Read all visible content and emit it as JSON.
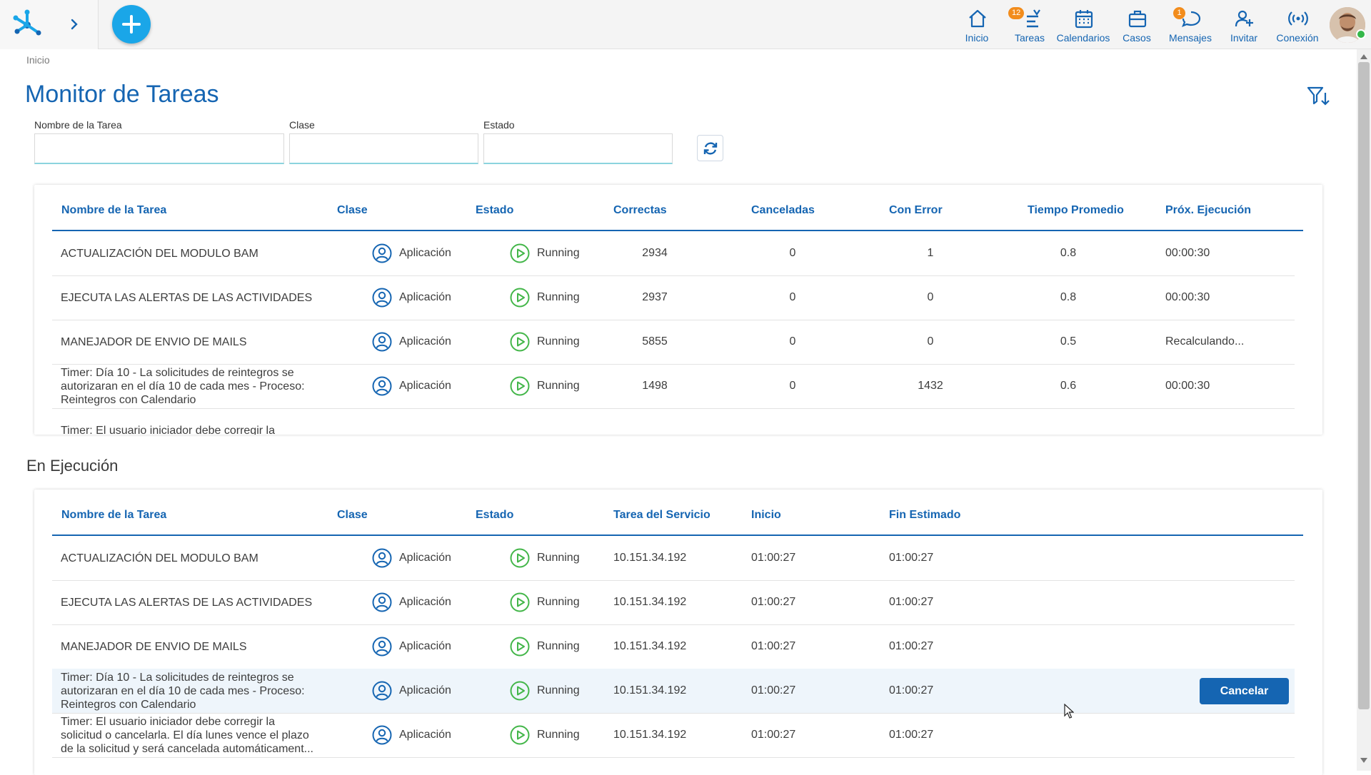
{
  "nav": {
    "items": [
      {
        "label": "Inicio",
        "icon": "home-icon"
      },
      {
        "label": "Tareas",
        "icon": "tasks-icon",
        "badge": "12"
      },
      {
        "label": "Calendarios",
        "icon": "calendar-icon"
      },
      {
        "label": "Casos",
        "icon": "briefcase-icon"
      },
      {
        "label": "Mensajes",
        "icon": "chat-icon",
        "badge": "1"
      },
      {
        "label": "Invitar",
        "icon": "add-user-icon"
      },
      {
        "label": "Conexión",
        "icon": "signal-icon"
      }
    ]
  },
  "breadcrumb": "Inicio",
  "page_title": "Monitor de Tareas",
  "filters": {
    "task_name_label": "Nombre de la Tarea",
    "task_name_value": "",
    "class_label": "Clase",
    "class_value": "",
    "state_label": "Estado",
    "state_value": ""
  },
  "monitor_table": {
    "headers": [
      "Nombre de la Tarea",
      "Clase",
      "Estado",
      "Correctas",
      "Canceladas",
      "Con Error",
      "Tiempo Promedio",
      "Próx. Ejecución"
    ],
    "rows": [
      {
        "name": [
          "ACTUALIZACIÓN DEL MODULO BAM"
        ],
        "clase": "Aplicación",
        "estado": "Running",
        "correctas": "2934",
        "canceladas": "0",
        "con_error": "1",
        "tiempo": "0.8",
        "prox": "00:00:30"
      },
      {
        "name": [
          "EJECUTA LAS ALERTAS DE LAS ACTIVIDADES"
        ],
        "clase": "Aplicación",
        "estado": "Running",
        "correctas": "2937",
        "canceladas": "0",
        "con_error": "0",
        "tiempo": "0.8",
        "prox": "00:00:30"
      },
      {
        "name": [
          "MANEJADOR DE ENVIO DE MAILS"
        ],
        "clase": "Aplicación",
        "estado": "Running",
        "correctas": "5855",
        "canceladas": "0",
        "con_error": "0",
        "tiempo": "0.5",
        "prox": "Recalculando..."
      },
      {
        "name": [
          "Timer: Día 10 - La solicitudes de reintegros se",
          "autorizaran en el día 10 de cada mes - Proceso:",
          "Reintegros con Calendario"
        ],
        "clase": "Aplicación",
        "estado": "Running",
        "correctas": "1498",
        "canceladas": "0",
        "con_error": "1432",
        "tiempo": "0.6",
        "prox": "00:00:30"
      },
      {
        "name": [
          "Timer: El usuario iniciador debe corregir la"
        ],
        "clase": "",
        "estado": "",
        "correctas": "",
        "canceladas": "",
        "con_error": "",
        "tiempo": "",
        "prox": ""
      }
    ]
  },
  "running_section_title": "En Ejecución",
  "running_table": {
    "headers": [
      "Nombre de la Tarea",
      "Clase",
      "Estado",
      "Tarea del Servicio",
      "Inicio",
      "Fin Estimado"
    ],
    "rows": [
      {
        "name": [
          "ACTUALIZACIÓN DEL MODULO BAM"
        ],
        "clase": "Aplicación",
        "estado": "Running",
        "servicio": "10.151.34.192",
        "inicio": "01:00:27",
        "fin": "01:00:27"
      },
      {
        "name": [
          "EJECUTA LAS ALERTAS DE LAS ACTIVIDADES"
        ],
        "clase": "Aplicación",
        "estado": "Running",
        "servicio": "10.151.34.192",
        "inicio": "01:00:27",
        "fin": "01:00:27"
      },
      {
        "name": [
          "MANEJADOR DE ENVIO DE MAILS"
        ],
        "clase": "Aplicación",
        "estado": "Running",
        "servicio": "10.151.34.192",
        "inicio": "01:00:27",
        "fin": "01:00:27"
      },
      {
        "name": [
          "Timer: Día 10 - La solicitudes de reintegros se",
          "autorizaran en el día 10 de cada mes - Proceso:",
          "Reintegros con Calendario"
        ],
        "clase": "Aplicación",
        "estado": "Running",
        "servicio": "10.151.34.192",
        "inicio": "01:00:27",
        "fin": "01:00:27",
        "highlighted": true,
        "action": "Cancelar"
      },
      {
        "name": [
          "Timer: El usuario iniciador debe corregir la",
          "solicitud o cancelarla. El día lunes vence el plazo",
          "de la solicitud y será cancelada automáticament..."
        ],
        "clase": "Aplicación",
        "estado": "Running",
        "servicio": "10.151.34.192",
        "inicio": "01:00:27",
        "fin": "01:00:27"
      }
    ]
  },
  "colors": {
    "primary": "#1565b2",
    "accent": "#1aa6e8",
    "running": "#43b649",
    "badge": "#f28c1c"
  }
}
